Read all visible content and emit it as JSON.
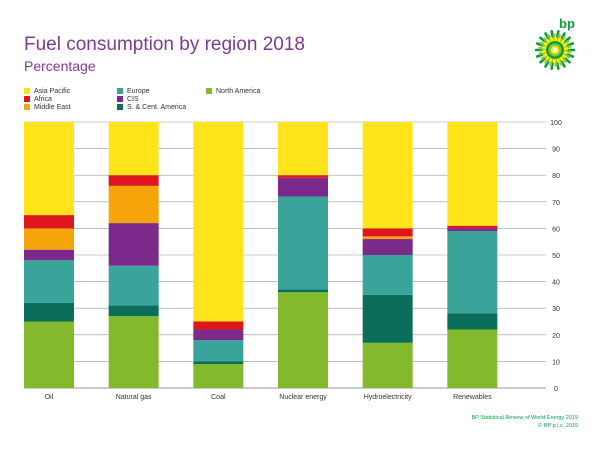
{
  "header": {
    "title": "Fuel consumption by region 2018",
    "subtitle": "Percentage",
    "logo_text": "bp"
  },
  "footer": {
    "line1": "BP Statistical Review of World Energy 2019",
    "line2": "© BP p.l.c. 2019"
  },
  "colors": {
    "title": "#7f3b8f",
    "brand_green": "#0f9d3a",
    "gridline": "#999999",
    "plot_background": "#ffffff"
  },
  "chart_data": {
    "type": "bar",
    "stacked": true,
    "categories": [
      "Oil",
      "Natural gas",
      "Coal",
      "Nuclear energy",
      "Hydroelectricity",
      "Renewables"
    ],
    "series": [
      {
        "name": "North America",
        "color": "#83b92c",
        "values": [
          25,
          27,
          9,
          36,
          17,
          22
        ]
      },
      {
        "name": "S. & Cent. America",
        "color": "#0b6e5a",
        "values": [
          7,
          4,
          1,
          1,
          18,
          6
        ]
      },
      {
        "name": "Europe",
        "color": "#3aa49b",
        "values": [
          16,
          15,
          8,
          35,
          15,
          31
        ]
      },
      {
        "name": "CIS",
        "color": "#7b2a8b",
        "values": [
          4,
          16,
          4,
          7,
          6,
          1
        ]
      },
      {
        "name": "Middle East",
        "color": "#f5a50a",
        "values": [
          8,
          14,
          0,
          0,
          1,
          0
        ]
      },
      {
        "name": "Africa",
        "color": "#e0161f",
        "values": [
          5,
          4,
          3,
          1,
          3,
          1
        ]
      },
      {
        "name": "Asia Pacific",
        "color": "#ffe31b",
        "values": [
          35,
          20,
          75,
          20,
          40,
          39
        ]
      }
    ],
    "legend_order": [
      "Asia Pacific",
      "Africa",
      "Middle East",
      "Europe",
      "CIS",
      "S. & Cent. America",
      "North America"
    ],
    "ylim": [
      0,
      100
    ],
    "y_ticks": [
      0,
      10,
      20,
      30,
      40,
      50,
      60,
      70,
      80,
      90,
      100
    ],
    "y_axis_side": "right",
    "grid": true,
    "legend_position": "top-left"
  }
}
